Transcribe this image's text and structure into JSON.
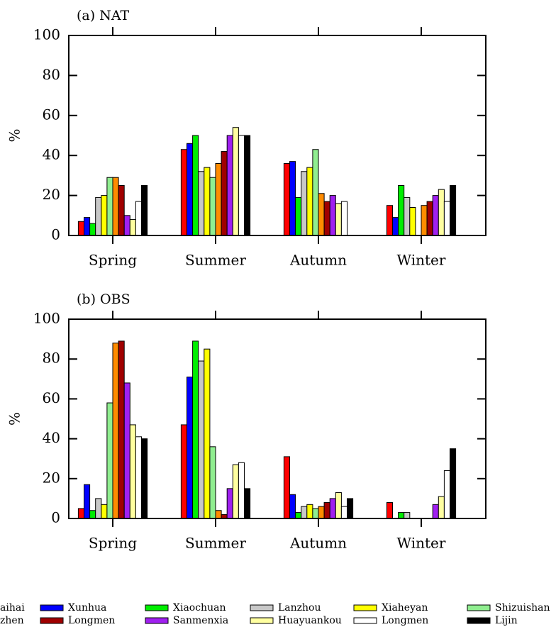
{
  "chart_data": [
    {
      "type": "bar",
      "title": "(a) NAT",
      "y_label": "%",
      "categories": [
        "Spring",
        "Summer",
        "Autumn",
        "Winter"
      ],
      "ylim": [
        0,
        100
      ],
      "yticks": [
        0,
        20,
        40,
        60,
        80,
        100
      ],
      "series": [
        {
          "name": "aihai",
          "color": "#ff0000",
          "values": [
            7,
            43,
            36,
            15
          ]
        },
        {
          "name": "Xunhua",
          "color": "#0000ff",
          "values": [
            9,
            46,
            37,
            9
          ]
        },
        {
          "name": "Xiaochuan",
          "color": "#00ee00",
          "values": [
            6,
            50,
            19,
            25
          ]
        },
        {
          "name": "Lanzhou",
          "color": "#c8c8c8",
          "values": [
            19,
            32,
            32,
            19
          ]
        },
        {
          "name": "Xiaheyan",
          "color": "#ffff00",
          "values": [
            20,
            34,
            34,
            14
          ]
        },
        {
          "name": "Shizuishan",
          "color": "#90ee90",
          "values": [
            29,
            29,
            43,
            0
          ]
        },
        {
          "name": "zhen",
          "color": "#ff8c00",
          "values": [
            29,
            36,
            21,
            15
          ]
        },
        {
          "name": "Longmen",
          "color": "#a00000",
          "values": [
            25,
            42,
            17,
            17
          ]
        },
        {
          "name": "Sanmenxia",
          "color": "#a020f0",
          "values": [
            10,
            50,
            20,
            20
          ]
        },
        {
          "name": "Huayuankou",
          "color": "#ffffa0",
          "values": [
            8,
            54,
            16,
            23
          ]
        },
        {
          "name": "Longmen",
          "color": "#ffffff",
          "values": [
            17,
            50,
            17,
            17
          ]
        },
        {
          "name": "Lijin",
          "color": "#000000",
          "values": [
            25,
            50,
            0,
            25
          ]
        }
      ]
    },
    {
      "type": "bar",
      "title": "(b) OBS",
      "y_label": "%",
      "categories": [
        "Spring",
        "Summer",
        "Autumn",
        "Winter"
      ],
      "ylim": [
        0,
        100
      ],
      "yticks": [
        0,
        20,
        40,
        60,
        80,
        100
      ],
      "series": [
        {
          "color": "#ff0000",
          "values": [
            5,
            47,
            31,
            8
          ]
        },
        {
          "color": "#0000ff",
          "values": [
            17,
            71,
            12,
            0
          ]
        },
        {
          "color": "#00ee00",
          "values": [
            4,
            89,
            3,
            3
          ]
        },
        {
          "color": "#c8c8c8",
          "values": [
            10,
            79,
            6,
            3
          ]
        },
        {
          "color": "#ffff00",
          "values": [
            7,
            85,
            7,
            0
          ]
        },
        {
          "color": "#90ee90",
          "values": [
            58,
            36,
            5,
            0
          ]
        },
        {
          "color": "#ff8c00",
          "values": [
            88,
            4,
            6,
            0
          ]
        },
        {
          "color": "#a00000",
          "values": [
            89,
            2,
            8,
            0
          ]
        },
        {
          "color": "#a020f0",
          "values": [
            68,
            15,
            10,
            7
          ]
        },
        {
          "color": "#ffffa0",
          "values": [
            47,
            27,
            13,
            11
          ]
        },
        {
          "color": "#ffffff",
          "values": [
            41,
            28,
            6,
            24
          ]
        },
        {
          "color": "#000000",
          "values": [
            40,
            15,
            10,
            35
          ]
        }
      ]
    }
  ]
}
